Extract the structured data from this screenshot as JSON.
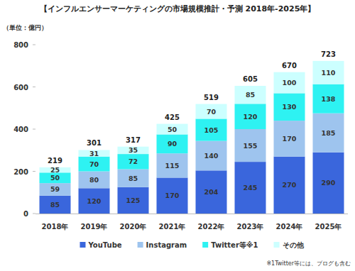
{
  "chart_data": {
    "type": "bar",
    "title": "【インフルエンサーマーケティングの市場規模推計・予測 2018年-2025年】",
    "unit_label": "（単位：億円）",
    "categories": [
      "2018年",
      "2019年",
      "2020年",
      "2021年",
      "2022年",
      "2023年",
      "2024年",
      "2025年"
    ],
    "series": [
      {
        "name": "YouTube",
        "color": "#3a66dc",
        "values": [
          85,
          120,
          125,
          170,
          204,
          245,
          270,
          290
        ]
      },
      {
        "name": "Instagram",
        "color": "#9ec4ee",
        "values": [
          59,
          80,
          85,
          115,
          140,
          155,
          170,
          185
        ]
      },
      {
        "name": "Twitter等※1",
        "color": "#2ef2f2",
        "values": [
          50,
          70,
          72,
          90,
          105,
          120,
          130,
          138
        ]
      },
      {
        "name": "その他",
        "color": "#ccffff",
        "values": [
          25,
          31,
          35,
          50,
          70,
          85,
          100,
          110
        ]
      }
    ],
    "totals": [
      219,
      301,
      317,
      425,
      519,
      605,
      670,
      723
    ],
    "ylim": [
      0,
      800
    ],
    "yticks": [
      0,
      200,
      400,
      600,
      800
    ],
    "stacked": true,
    "data_labels": true,
    "grid": false,
    "legend": "bottom",
    "footnote": "※1Twitter等には、ブログも含む"
  }
}
